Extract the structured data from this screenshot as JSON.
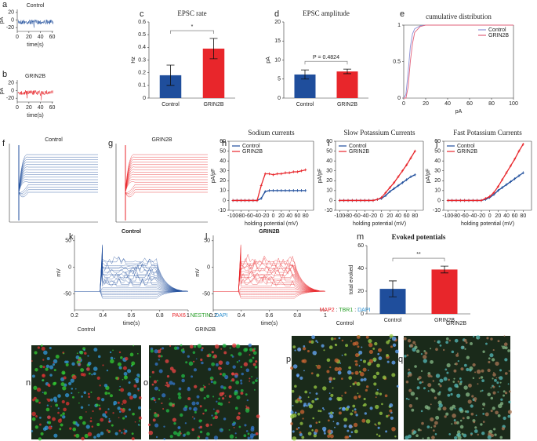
{
  "chart_data": [
    {
      "type": "trace",
      "title": "Control",
      "color": "#1f4e9c",
      "xlabel": "time(s)",
      "ylabel": "pA",
      "xlim": [
        0,
        62
      ],
      "xticks": [
        0,
        20,
        40,
        60
      ],
      "ylim": [
        -30,
        28
      ],
      "yticks": [
        -20,
        0,
        20
      ]
    },
    {
      "type": "trace",
      "title": "GRIN2B",
      "color": "#e8262b",
      "xlabel": "time(s)",
      "ylabel": "pA",
      "xlim": [
        0,
        62
      ],
      "xticks": [
        0,
        20,
        40,
        60
      ],
      "ylim": [
        -30,
        28
      ],
      "yticks": [
        -20,
        0,
        20
      ]
    },
    {
      "type": "bar",
      "title": "EPSC rate",
      "ylabel": "Hz",
      "categories": [
        "Control",
        "GRIN2B"
      ],
      "values": [
        0.18,
        0.39
      ],
      "errors": [
        0.08,
        0.08
      ],
      "colors": [
        "#1f4e9c",
        "#e8262b"
      ],
      "ylim": [
        0,
        0.6
      ],
      "yticks": [
        0,
        0.1,
        0.2,
        0.3,
        0.4,
        0.5,
        0.6
      ],
      "annotation": "*"
    },
    {
      "type": "bar",
      "title": "EPSC amplitude",
      "ylabel": "pA",
      "categories": [
        "Control",
        "GRIN2B"
      ],
      "values": [
        6.2,
        7.0
      ],
      "errors": [
        1.2,
        0.6
      ],
      "colors": [
        "#1f4e9c",
        "#e8262b"
      ],
      "ylim": [
        0,
        20
      ],
      "yticks": [
        0,
        5,
        10,
        15,
        20
      ],
      "annotation": "P = 0.4824"
    },
    {
      "type": "line",
      "title": "cumulative distribution",
      "xlabel": "pA",
      "x": [
        0,
        2,
        4,
        6,
        8,
        10,
        15,
        20,
        100
      ],
      "xlim": [
        0,
        100
      ],
      "xticks": [
        0,
        20,
        40,
        60,
        80,
        100
      ],
      "ylim": [
        0,
        1
      ],
      "yticks": [
        0,
        0.5,
        1
      ],
      "legend": "upper-right",
      "markers": false,
      "series": [
        {
          "name": "Control",
          "color": "#8b8fd6",
          "values": [
            0,
            0.05,
            0.35,
            0.7,
            0.88,
            0.95,
            0.99,
            1,
            1
          ]
        },
        {
          "name": "GRIN2B",
          "color": "#e0607a",
          "values": [
            0,
            0,
            0.15,
            0.5,
            0.75,
            0.9,
            0.98,
            1,
            1
          ]
        }
      ]
    },
    {
      "type": "trace",
      "title": "Control",
      "color": "#1f4e9c"
    },
    {
      "type": "trace",
      "title": "GRIN2B",
      "color": "#e8262b"
    },
    {
      "type": "line",
      "title": "Sodium currents",
      "xlabel": "holding potential (mV)",
      "ylabel": "pA/pF",
      "x": [
        -100,
        -90,
        -80,
        -70,
        -60,
        -50,
        -40,
        -30,
        -20,
        -10,
        0,
        10,
        20,
        30,
        40,
        50,
        60,
        70,
        80
      ],
      "xlim": [
        -110,
        100
      ],
      "xticks": [
        -100,
        -80,
        -60,
        -40,
        -20,
        0,
        20,
        40,
        60,
        80
      ],
      "ylim": [
        -10,
        60
      ],
      "yticks": [
        -10,
        0,
        10,
        20,
        30,
        40,
        50,
        60
      ],
      "legend": "upper-left",
      "markers": true,
      "series": [
        {
          "name": "Control",
          "color": "#1f4e9c",
          "values": [
            0,
            0,
            0,
            0,
            0,
            0,
            0,
            2,
            9,
            10,
            10,
            10,
            10,
            10,
            10,
            10,
            10,
            10,
            10
          ]
        },
        {
          "name": "GRIN2B",
          "color": "#e8262b",
          "values": [
            0,
            0,
            0,
            0,
            0,
            0,
            0,
            15,
            27,
            27,
            26,
            27,
            27,
            28,
            28,
            29,
            29,
            30,
            31
          ]
        }
      ]
    },
    {
      "type": "line",
      "title": "Slow Potassium Currents",
      "xlabel": "holding potential (mV)",
      "ylabel": "pA/pF",
      "x": [
        -100,
        -90,
        -80,
        -70,
        -60,
        -50,
        -40,
        -30,
        -20,
        -10,
        0,
        10,
        20,
        30,
        40,
        50,
        60,
        70,
        80
      ],
      "xlim": [
        -110,
        100
      ],
      "xticks": [
        -100,
        -80,
        -60,
        -40,
        -20,
        0,
        20,
        40,
        60,
        80
      ],
      "ylim": [
        -10,
        60
      ],
      "yticks": [
        -10,
        0,
        10,
        20,
        30,
        40,
        50,
        60
      ],
      "legend": "upper-left",
      "markers": true,
      "series": [
        {
          "name": "Control",
          "color": "#1f4e9c",
          "values": [
            0,
            0,
            0,
            0,
            0,
            0,
            0,
            0,
            0,
            1,
            2,
            5,
            9,
            12,
            15,
            18,
            21,
            24,
            26
          ]
        },
        {
          "name": "GRIN2B",
          "color": "#e8262b",
          "values": [
            0,
            0,
            0,
            0,
            0,
            0,
            0,
            0,
            0,
            1,
            3,
            8,
            13,
            18,
            24,
            30,
            36,
            43,
            50
          ]
        }
      ]
    },
    {
      "type": "line",
      "title": "Fast Potassium Currents",
      "xlabel": "holding potential (mV)",
      "ylabel": "pA/pF",
      "x": [
        -100,
        -90,
        -80,
        -70,
        -60,
        -50,
        -40,
        -30,
        -20,
        -10,
        0,
        10,
        20,
        30,
        40,
        50,
        60,
        70,
        80
      ],
      "xlim": [
        -110,
        100
      ],
      "xticks": [
        -100,
        -80,
        -60,
        -40,
        -20,
        0,
        20,
        40,
        60,
        80
      ],
      "ylim": [
        -10,
        60
      ],
      "yticks": [
        -10,
        0,
        10,
        20,
        30,
        40,
        50,
        60
      ],
      "legend": "upper-left",
      "markers": true,
      "series": [
        {
          "name": "Control",
          "color": "#1f4e9c",
          "values": [
            0,
            0,
            0,
            0,
            0,
            0,
            0,
            0,
            0,
            1,
            3,
            6,
            10,
            13,
            16,
            19,
            22,
            25,
            28
          ]
        },
        {
          "name": "GRIN2B",
          "color": "#e8262b",
          "values": [
            0,
            0,
            0,
            0,
            0,
            0,
            0,
            0,
            0,
            2,
            4,
            8,
            14,
            21,
            28,
            35,
            42,
            50,
            57
          ]
        }
      ]
    },
    {
      "type": "trace",
      "title": "Control",
      "color": "#1f4e9c",
      "xlabel": "time(s)",
      "ylabel": "mV",
      "xlim": [
        0.2,
        1
      ],
      "xticks": [
        0.2,
        0.4,
        0.6,
        0.8,
        1
      ],
      "ylim": [
        -80,
        60
      ],
      "yticks": [
        -50,
        0,
        50
      ]
    },
    {
      "type": "trace",
      "title": "GRIN2B",
      "color": "#e8262b",
      "xlabel": "time(s)",
      "ylabel": "mV",
      "xlim": [
        0.2,
        1
      ],
      "xticks": [
        0.2,
        0.4,
        0.6,
        0.8,
        1
      ],
      "ylim": [
        -80,
        60
      ],
      "yticks": [
        -50,
        0,
        50
      ]
    },
    {
      "type": "bar",
      "title": "Evoked potentials",
      "ylabel": "total evoked",
      "categories": [
        "Control",
        "GRIN2B"
      ],
      "values": [
        22,
        39
      ],
      "errors": [
        7,
        3
      ],
      "colors": [
        "#1f4e9c",
        "#e8262b"
      ],
      "ylim": [
        0,
        60
      ],
      "yticks": [
        0,
        20,
        40,
        60
      ],
      "annotation": "**"
    }
  ],
  "panel_letters": [
    "a",
    "b",
    "c",
    "d",
    "e",
    "f",
    "g",
    "h",
    "i",
    "j",
    "k",
    "l",
    "m",
    "n",
    "o",
    "p",
    "q"
  ],
  "stains": [
    {
      "parts": [
        {
          "text": "PAX6",
          "color": "#e8262b"
        },
        {
          "text": " : ",
          "color": "#333"
        },
        {
          "text": "NESTIN",
          "color": "#2aa02a"
        },
        {
          "text": " : ",
          "color": "#333"
        },
        {
          "text": "DAPI",
          "color": "#2a8fd0"
        }
      ],
      "groups": [
        "Control",
        "GRIN2B"
      ]
    },
    {
      "parts": [
        {
          "text": "MAP2",
          "color": "#e8262b"
        },
        {
          "text": " : ",
          "color": "#333"
        },
        {
          "text": "TBR1",
          "color": "#2aa02a"
        },
        {
          "text": " : ",
          "color": "#333"
        },
        {
          "text": "DAPI",
          "color": "#2a8fd0"
        }
      ],
      "groups": [
        "Control",
        "GRIN2B"
      ]
    }
  ]
}
